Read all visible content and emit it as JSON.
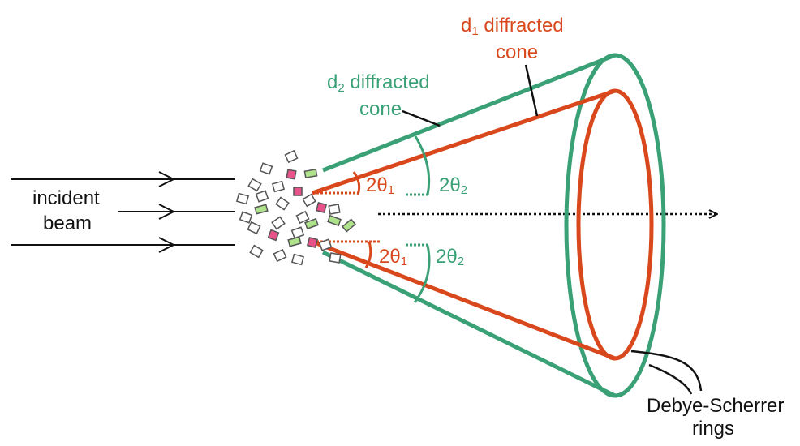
{
  "colors": {
    "d1": "#d9481c",
    "d2": "#3aa076",
    "beam": "#111111",
    "crystal_gray": "#ffffff",
    "crystal_pink": "#e8528a",
    "crystal_green": "#aee38b"
  },
  "labels": {
    "incident_line1": "incident",
    "incident_line2": "beam",
    "d1_line1_prefix": "d",
    "d1_sub": "1",
    "d1_line1_suffix": " diffracted",
    "d1_line2": "cone",
    "d2_line1_prefix": "d",
    "d2_sub": "2",
    "d2_line1_suffix": " diffracted",
    "d2_line2": "cone",
    "rings_line1": "Debye-Scherrer",
    "rings_line2": "rings",
    "two_theta_prefix": "2θ",
    "theta1_sub": "1",
    "theta2_sub": "2"
  }
}
